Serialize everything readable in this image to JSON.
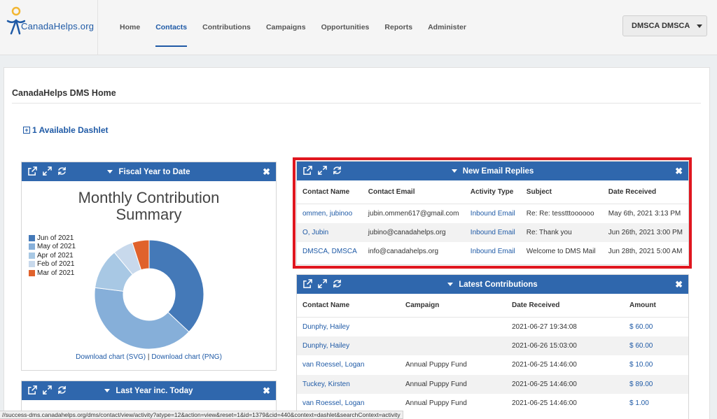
{
  "brand": {
    "logo_text": "CanadaHelps.org"
  },
  "nav": {
    "items": [
      {
        "label": "Home"
      },
      {
        "label": "Contacts"
      },
      {
        "label": "Contributions"
      },
      {
        "label": "Campaigns"
      },
      {
        "label": "Opportunities"
      },
      {
        "label": "Reports"
      },
      {
        "label": "Administer"
      }
    ],
    "active": "Contacts",
    "user_label": "DMSCA DMSCA"
  },
  "page": {
    "title": "CanadaHelps DMS Home",
    "available_dashlets": "1 Available Dashlet"
  },
  "fiscal": {
    "header": "Fiscal Year to Date",
    "chart_title_line1": "Monthly Contribution",
    "chart_title_line2": "Summary",
    "download_svg": "Download chart (SVG)",
    "separator": "|",
    "download_png": "Download chart (PNG)"
  },
  "chart_data": {
    "type": "pie",
    "title": "Monthly Contribution Summary",
    "donut": true,
    "legend_position": "left",
    "categories": [
      "Jun of 2021",
      "May of 2021",
      "Apr of 2021",
      "Feb of 2021",
      "Mar of 2021"
    ],
    "values": [
      37,
      40,
      12,
      6,
      5
    ],
    "colors": [
      "#4479b8",
      "#86afd9",
      "#a8c8e4",
      "#c8d9ec",
      "#e0622c"
    ]
  },
  "last_year": {
    "header": "Last Year inc. Today"
  },
  "email_replies": {
    "header": "New Email Replies",
    "columns": [
      "Contact Name",
      "Contact Email",
      "Activity Type",
      "Subject",
      "Date Received"
    ],
    "rows": [
      {
        "name": "ommen, jubinoo",
        "email": "jubin.ommen617@gmail.com",
        "type": "Inbound Email",
        "subject": "Re: Re: tesstttoooooo",
        "date": "May 6th, 2021 3:13 PM"
      },
      {
        "name": "O, Jubin",
        "email": "jubino@canadahelps.org",
        "type": "Inbound Email",
        "subject": "Re: Thank you",
        "date": "Jun 26th, 2021 3:00 PM"
      },
      {
        "name": "DMSCA, DMSCA",
        "email": "info@canadahelps.org",
        "type": "Inbound Email",
        "subject": "Welcome to DMS Mail",
        "date": "Jun 28th, 2021 5:00 AM"
      }
    ]
  },
  "contributions": {
    "header": "Latest Contributions",
    "columns": [
      "Contact Name",
      "Campaign",
      "Date Received",
      "Amount"
    ],
    "rows": [
      {
        "name": "Dunphy, Hailey",
        "campaign": "",
        "date": "2021-06-27 19:34:08",
        "amount": "$ 60.00"
      },
      {
        "name": "Dunphy, Hailey",
        "campaign": "",
        "date": "2021-06-26 15:03:00",
        "amount": "$ 60.00"
      },
      {
        "name": "van Roessel, Logan",
        "campaign": "Annual Puppy Fund",
        "date": "2021-06-25 14:46:00",
        "amount": "$ 10.00"
      },
      {
        "name": "Tuckey, Kirsten",
        "campaign": "Annual Puppy Fund",
        "date": "2021-06-25 14:46:00",
        "amount": "$ 89.00"
      },
      {
        "name": "van Roessel, Logan",
        "campaign": "Annual Puppy Fund",
        "date": "2021-06-25 14:46:00",
        "amount": "$ 1.00"
      }
    ]
  },
  "status_url": "//success-dms.canadahelps.org/dms/contact/view/activity?atype=12&action=view&reset=1&id=1379&cid=440&context=dashlet&searchContext=activity",
  "colors": {
    "accent": "#2f67ad",
    "highlight": "#e0161f",
    "link": "#1f5aa6"
  }
}
